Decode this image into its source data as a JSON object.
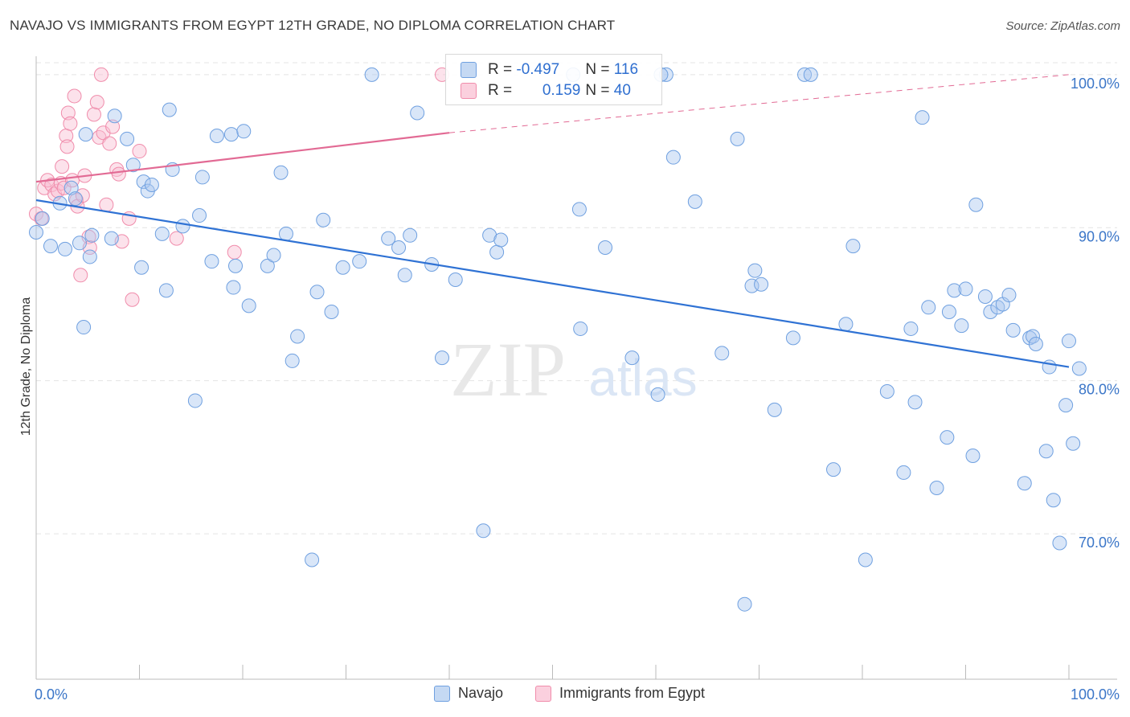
{
  "title": "NAVAJO VS IMMIGRANTS FROM EGYPT 12TH GRADE, NO DIPLOMA CORRELATION CHART",
  "source": "Source: ZipAtlas.com",
  "watermark": {
    "zip": "ZIP",
    "atlas": "atlas"
  },
  "colors": {
    "navajo": "#6fa0e0",
    "egypt": "#f08cab",
    "navajo_line": "#2f72d4",
    "egypt_line": "#e26a94",
    "axis_label": "#3b76c8"
  },
  "legend": {
    "navajo": "Navajo",
    "egypt": "Immigrants from Egypt"
  },
  "stats": {
    "navajo": {
      "r_label": "R = ",
      "r": "-0.497",
      "n_label": "N = ",
      "n": "116"
    },
    "egypt": {
      "r_label": "R = ",
      "r": "0.159",
      "n_label": "N = ",
      "n": "40"
    }
  },
  "chart_data": {
    "type": "scatter",
    "xlabel": "",
    "ylabel": "12th Grade, No Diploma",
    "x_tick_labels": [
      "0.0%",
      "100.0%"
    ],
    "y_tick_labels": [
      "100.0%",
      "90.0%",
      "80.0%",
      "70.0%"
    ],
    "y_ticks": [
      100,
      90,
      80,
      70
    ],
    "xlim": [
      0,
      100
    ],
    "ylim": [
      60.5,
      101.2
    ],
    "grid": true,
    "series": [
      {
        "name": "Navajo",
        "trend": {
          "x": [
            0,
            100
          ],
          "y": [
            91.8,
            80.9
          ]
        },
        "points": [
          [
            0.0,
            89.7
          ],
          [
            0.6,
            90.6
          ],
          [
            1.4,
            88.8
          ],
          [
            2.3,
            91.6
          ],
          [
            2.8,
            88.6
          ],
          [
            3.4,
            92.6
          ],
          [
            3.8,
            91.9
          ],
          [
            4.2,
            89.0
          ],
          [
            4.6,
            83.5
          ],
          [
            4.8,
            96.1
          ],
          [
            5.2,
            88.1
          ],
          [
            5.4,
            89.5
          ],
          [
            7.3,
            89.3
          ],
          [
            7.6,
            97.3
          ],
          [
            8.8,
            95.8
          ],
          [
            9.4,
            94.1
          ],
          [
            10.2,
            87.4
          ],
          [
            10.4,
            93.0
          ],
          [
            10.8,
            92.4
          ],
          [
            11.2,
            92.8
          ],
          [
            12.2,
            89.6
          ],
          [
            12.6,
            85.9
          ],
          [
            12.9,
            97.7
          ],
          [
            13.2,
            93.8
          ],
          [
            14.2,
            90.1
          ],
          [
            15.4,
            78.7
          ],
          [
            15.8,
            90.8
          ],
          [
            16.1,
            93.3
          ],
          [
            17.0,
            87.8
          ],
          [
            17.5,
            96.0
          ],
          [
            18.9,
            96.1
          ],
          [
            19.1,
            86.1
          ],
          [
            19.3,
            87.5
          ],
          [
            20.1,
            96.3
          ],
          [
            20.6,
            84.9
          ],
          [
            22.4,
            87.5
          ],
          [
            23.0,
            88.2
          ],
          [
            23.7,
            93.6
          ],
          [
            24.2,
            89.6
          ],
          [
            24.8,
            81.3
          ],
          [
            25.3,
            82.9
          ],
          [
            26.7,
            68.3
          ],
          [
            27.2,
            85.8
          ],
          [
            27.8,
            90.5
          ],
          [
            28.6,
            84.5
          ],
          [
            29.7,
            87.4
          ],
          [
            31.3,
            87.8
          ],
          [
            34.1,
            89.3
          ],
          [
            35.1,
            88.7
          ],
          [
            35.7,
            86.9
          ],
          [
            36.2,
            89.5
          ],
          [
            36.9,
            97.5
          ],
          [
            38.3,
            87.6
          ],
          [
            39.3,
            81.5
          ],
          [
            40.6,
            86.6
          ],
          [
            43.3,
            70.2
          ],
          [
            43.9,
            89.5
          ],
          [
            44.6,
            88.4
          ],
          [
            45.0,
            89.2
          ],
          [
            52.6,
            91.2
          ],
          [
            52.7,
            83.4
          ],
          [
            55.1,
            88.7
          ],
          [
            57.7,
            81.5
          ],
          [
            60.2,
            79.1
          ],
          [
            61.7,
            94.6
          ],
          [
            63.8,
            91.7
          ],
          [
            66.4,
            81.8
          ],
          [
            67.9,
            95.8
          ],
          [
            68.6,
            65.4
          ],
          [
            69.3,
            86.2
          ],
          [
            69.6,
            87.2
          ],
          [
            70.2,
            86.3
          ],
          [
            71.5,
            78.1
          ],
          [
            73.3,
            82.8
          ],
          [
            74.4,
            100.0
          ],
          [
            77.2,
            74.2
          ],
          [
            78.4,
            83.7
          ],
          [
            79.1,
            88.8
          ],
          [
            80.3,
            68.3
          ],
          [
            82.4,
            79.3
          ],
          [
            84.0,
            74.0
          ],
          [
            84.7,
            83.4
          ],
          [
            85.1,
            78.6
          ],
          [
            85.8,
            97.2
          ],
          [
            86.4,
            84.8
          ],
          [
            87.2,
            73.0
          ],
          [
            88.2,
            76.3
          ],
          [
            88.4,
            84.5
          ],
          [
            88.9,
            85.9
          ],
          [
            89.6,
            83.6
          ],
          [
            90.0,
            86.0
          ],
          [
            90.7,
            75.1
          ],
          [
            91.0,
            91.5
          ],
          [
            91.9,
            85.5
          ],
          [
            92.4,
            84.5
          ],
          [
            93.1,
            84.8
          ],
          [
            93.6,
            85.0
          ],
          [
            94.2,
            85.6
          ],
          [
            94.6,
            83.3
          ],
          [
            95.7,
            73.3
          ],
          [
            96.2,
            82.8
          ],
          [
            96.5,
            82.9
          ],
          [
            96.8,
            82.4
          ],
          [
            97.8,
            75.4
          ],
          [
            98.1,
            80.9
          ],
          [
            98.5,
            72.2
          ],
          [
            99.1,
            69.4
          ],
          [
            99.7,
            78.4
          ],
          [
            100.0,
            82.6
          ],
          [
            100.4,
            75.9
          ],
          [
            101.0,
            80.8
          ],
          [
            32.5,
            100.0
          ],
          [
            52.0,
            100.0
          ],
          [
            61.0,
            100.0
          ],
          [
            60.5,
            100.0
          ],
          [
            75.0,
            100.0
          ]
        ]
      },
      {
        "name": "Immigrants from Egypt",
        "trend": {
          "x": [
            0,
            40
          ],
          "y": [
            93.0,
            96.2
          ]
        },
        "trend_extension": {
          "x": [
            40,
            100
          ],
          "y": [
            96.2,
            100.0
          ]
        },
        "points": [
          [
            0.0,
            90.9
          ],
          [
            0.5,
            90.6
          ],
          [
            0.8,
            92.6
          ],
          [
            1.1,
            93.1
          ],
          [
            1.5,
            92.8
          ],
          [
            1.8,
            92.2
          ],
          [
            2.1,
            92.4
          ],
          [
            2.4,
            92.9
          ],
          [
            2.5,
            94.0
          ],
          [
            2.7,
            92.6
          ],
          [
            2.9,
            96.0
          ],
          [
            3.0,
            95.3
          ],
          [
            3.1,
            97.5
          ],
          [
            3.3,
            96.8
          ],
          [
            3.5,
            93.1
          ],
          [
            3.7,
            98.6
          ],
          [
            3.9,
            91.8
          ],
          [
            4.0,
            91.4
          ],
          [
            4.3,
            86.9
          ],
          [
            4.5,
            92.1
          ],
          [
            4.7,
            93.4
          ],
          [
            5.1,
            89.4
          ],
          [
            5.2,
            88.7
          ],
          [
            5.6,
            97.4
          ],
          [
            5.9,
            98.2
          ],
          [
            6.1,
            95.9
          ],
          [
            6.3,
            100.0
          ],
          [
            6.5,
            96.2
          ],
          [
            6.8,
            91.5
          ],
          [
            7.1,
            95.5
          ],
          [
            7.4,
            96.6
          ],
          [
            7.8,
            93.8
          ],
          [
            8.0,
            93.5
          ],
          [
            8.3,
            89.1
          ],
          [
            9.0,
            90.6
          ],
          [
            9.3,
            85.3
          ],
          [
            10.0,
            95.0
          ],
          [
            13.6,
            89.3
          ],
          [
            19.2,
            88.4
          ],
          [
            39.3,
            100.0
          ]
        ]
      }
    ]
  }
}
